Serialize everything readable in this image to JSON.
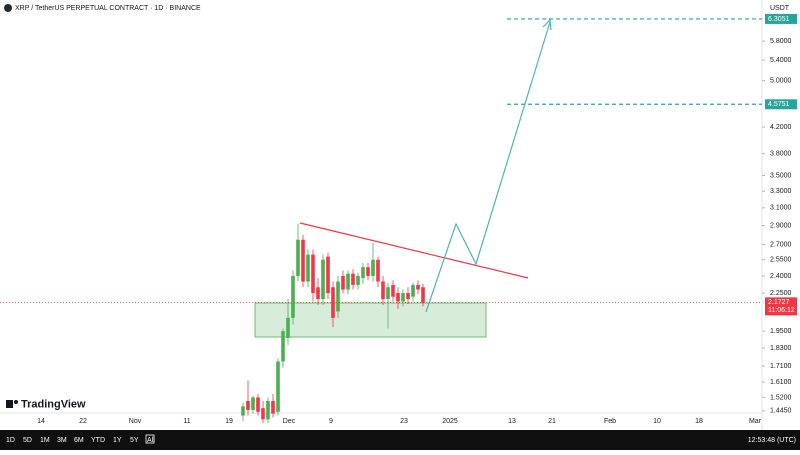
{
  "chart_data": {
    "type": "candlestick",
    "title": "XRP / TetherUS PERPETUAL CONTRACT · 1D · BINANCE",
    "currency": "USDT",
    "log_scale": true,
    "up_color": "#4caf50",
    "down_color": "#f23645",
    "open": [
      1.42,
      1.5,
      1.45,
      1.52,
      1.46,
      1.4,
      1.5,
      1.44,
      1.74,
      1.9,
      2.05,
      2.4,
      2.75,
      2.35,
      2.6,
      2.3,
      2.2,
      2.58,
      2.3,
      2.1,
      2.4,
      2.28,
      2.42,
      2.32,
      2.38,
      2.48,
      2.4,
      2.55,
      2.35,
      2.2,
      2.32,
      2.25,
      2.18,
      2.25,
      2.22,
      2.32,
      2.3
    ],
    "high": [
      1.49,
      1.62,
      1.53,
      1.54,
      1.5,
      1.52,
      1.54,
      1.76,
      1.97,
      2.2,
      2.45,
      2.92,
      2.8,
      2.65,
      2.65,
      2.38,
      2.6,
      2.62,
      2.35,
      2.4,
      2.45,
      2.45,
      2.46,
      2.43,
      2.52,
      2.52,
      2.72,
      2.58,
      2.4,
      2.34,
      2.36,
      2.3,
      2.28,
      2.3,
      2.34,
      2.36,
      2.33
    ],
    "low": [
      1.39,
      1.42,
      1.43,
      1.42,
      1.38,
      1.38,
      1.41,
      1.42,
      1.7,
      1.85,
      2.0,
      2.35,
      2.3,
      2.3,
      2.18,
      2.15,
      2.15,
      2.2,
      1.98,
      2.05,
      2.25,
      2.24,
      2.28,
      2.28,
      2.33,
      2.36,
      2.35,
      2.3,
      2.15,
      1.97,
      2.18,
      2.12,
      2.14,
      2.16,
      2.18,
      2.24,
      2.14
    ],
    "close": [
      1.47,
      1.45,
      1.52,
      1.44,
      1.4,
      1.5,
      1.43,
      1.74,
      1.95,
      2.05,
      2.4,
      2.75,
      2.35,
      2.6,
      2.25,
      2.2,
      2.55,
      2.25,
      2.05,
      2.35,
      2.28,
      2.42,
      2.32,
      2.4,
      2.48,
      2.4,
      2.55,
      2.35,
      2.2,
      2.3,
      2.22,
      2.18,
      2.25,
      2.2,
      2.32,
      2.28,
      2.17
    ],
    "ylim": [
      1.355,
      6.57
    ],
    "yticks": [
      {
        "value": 5.8,
        "label": "5.8000"
      },
      {
        "value": 5.4,
        "label": "5.4000"
      },
      {
        "value": 5.0,
        "label": "5.0000"
      },
      {
        "value": 4.2,
        "label": "4.2000"
      },
      {
        "value": 3.8,
        "label": "3.8000"
      },
      {
        "value": 3.5,
        "label": "3.5000"
      },
      {
        "value": 3.3,
        "label": "3.3000"
      },
      {
        "value": 3.1,
        "label": "3.1000"
      },
      {
        "value": 2.9,
        "label": "2.9000"
      },
      {
        "value": 2.7,
        "label": "2.7000"
      },
      {
        "value": 2.55,
        "label": "2.5500"
      },
      {
        "value": 2.4,
        "label": "2.4000"
      },
      {
        "value": 2.25,
        "label": "2.2500"
      },
      {
        "value": 1.95,
        "label": "1.9500"
      },
      {
        "value": 1.83,
        "label": "1.8300"
      },
      {
        "value": 1.71,
        "label": "1.7100"
      },
      {
        "value": 1.61,
        "label": "1.6100"
      },
      {
        "value": 1.52,
        "label": "1.5200"
      },
      {
        "value": 1.445,
        "label": "1.4450"
      }
    ],
    "x_labels": [
      "14",
      "22",
      "Nov",
      "11",
      "19",
      "Dec",
      "9",
      "23",
      "2025",
      "13",
      "21",
      "Feb",
      "10",
      "18",
      "Mar"
    ],
    "price_lines": [
      6.3051,
      4.5751
    ],
    "price_line_color": "#26a69a",
    "last_price": 2.1727,
    "countdown": "11:06:12",
    "last_price_color": "#f23645",
    "logo": "TradingView",
    "ranges": [
      "1D",
      "5D",
      "1M",
      "3M",
      "6M",
      "YTD",
      "1Y",
      "5Y",
      "All"
    ],
    "clock": "12:53:48 (UTC)"
  }
}
